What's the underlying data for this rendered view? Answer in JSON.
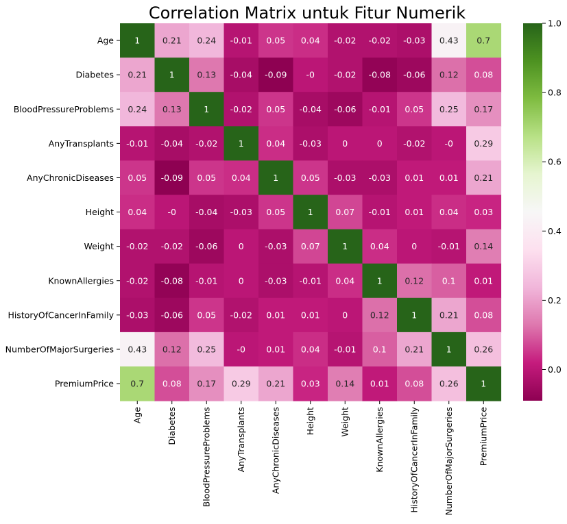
{
  "chart_data": {
    "type": "heatmap",
    "title": "Correlation Matrix untuk Fitur Numerik",
    "xlabel": "",
    "ylabel": "",
    "labels": [
      "Age",
      "Diabetes",
      "BloodPressureProblems",
      "AnyTransplants",
      "AnyChronicDiseases",
      "Height",
      "Weight",
      "KnownAllergies",
      "HistoryOfCancerInFamily",
      "NumberOfMajorSurgeries",
      "PremiumPrice"
    ],
    "matrix": [
      [
        "1",
        "0.21",
        "0.24",
        "-0.01",
        "0.05",
        "0.04",
        "-0.02",
        "-0.02",
        "-0.03",
        "0.43",
        "0.7"
      ],
      [
        "0.21",
        "1",
        "0.13",
        "-0.04",
        "-0.09",
        "-0",
        "-0.02",
        "-0.08",
        "-0.06",
        "0.12",
        "0.08"
      ],
      [
        "0.24",
        "0.13",
        "1",
        "-0.02",
        "0.05",
        "-0.04",
        "-0.06",
        "-0.01",
        "0.05",
        "0.25",
        "0.17"
      ],
      [
        "-0.01",
        "-0.04",
        "-0.02",
        "1",
        "0.04",
        "-0.03",
        "0",
        "0",
        "-0.02",
        "-0",
        "0.29"
      ],
      [
        "0.05",
        "-0.09",
        "0.05",
        "0.04",
        "1",
        "0.05",
        "-0.03",
        "-0.03",
        "0.01",
        "0.01",
        "0.21"
      ],
      [
        "0.04",
        "-0",
        "-0.04",
        "-0.03",
        "0.05",
        "1",
        "0.07",
        "-0.01",
        "0.01",
        "0.04",
        "0.03"
      ],
      [
        "-0.02",
        "-0.02",
        "-0.06",
        "0",
        "-0.03",
        "0.07",
        "1",
        "0.04",
        "0",
        "-0.01",
        "0.14"
      ],
      [
        "-0.02",
        "-0.08",
        "-0.01",
        "0",
        "-0.03",
        "-0.01",
        "0.04",
        "1",
        "0.12",
        "0.1",
        "0.01"
      ],
      [
        "-0.03",
        "-0.06",
        "0.05",
        "-0.02",
        "0.01",
        "0.01",
        "0",
        "0.12",
        "1",
        "0.21",
        "0.08"
      ],
      [
        "0.43",
        "0.12",
        "0.25",
        "-0",
        "0.01",
        "0.04",
        "-0.01",
        "0.1",
        "0.21",
        "1",
        "0.26"
      ],
      [
        "0.7",
        "0.08",
        "0.17",
        "0.29",
        "0.21",
        "0.03",
        "0.14",
        "0.01",
        "0.08",
        "0.26",
        "1"
      ]
    ],
    "colormap": "PiYG",
    "colorbar": {
      "range": [
        -0.09,
        1.0
      ],
      "ticks": [
        "0.0",
        "0.2",
        "0.4",
        "0.6",
        "0.8",
        "1.0"
      ]
    },
    "grid": false,
    "legend": "colorbar-right",
    "colors": {
      "low": "#8e0152",
      "mid": "#f7f7f7",
      "high": "#276419"
    }
  }
}
